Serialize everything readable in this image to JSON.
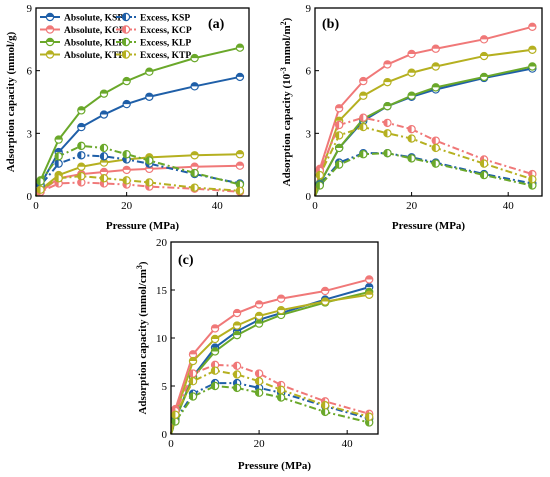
{
  "chart_data": [
    {
      "type": "line",
      "panel_label": "(a)",
      "xlabel": "Pressure (MPa)",
      "ylabel": "Adsorption capacity (mmol/g)",
      "xlim": [
        0,
        47
      ],
      "ylim": [
        0,
        9
      ],
      "xticks": [
        0,
        20,
        40
      ],
      "yticks": [
        0,
        3,
        6,
        9
      ],
      "legend": "top-left",
      "x": [
        0,
        1,
        5,
        10,
        15,
        20,
        25,
        35,
        45
      ],
      "series": [
        {
          "name": "Absolute, KSP",
          "style": "absolute",
          "color": "#1f5fa8",
          "values": [
            0,
            0.55,
            2.1,
            3.3,
            3.9,
            4.4,
            4.75,
            5.25,
            5.7
          ]
        },
        {
          "name": "Absolute, KCP",
          "style": "absolute",
          "color": "#f07878",
          "values": [
            0,
            0.2,
            0.85,
            1.05,
            1.15,
            1.25,
            1.3,
            1.4,
            1.45
          ]
        },
        {
          "name": "Absolute, KLP",
          "style": "absolute",
          "color": "#6aa82a",
          "values": [
            0,
            0.75,
            2.7,
            4.1,
            4.9,
            5.5,
            5.95,
            6.6,
            7.1
          ]
        },
        {
          "name": "Absolute, KTP",
          "style": "absolute",
          "color": "#b5b020",
          "values": [
            0,
            0.3,
            1.0,
            1.4,
            1.6,
            1.75,
            1.85,
            1.95,
            2.0
          ]
        },
        {
          "name": "Excess, KSP",
          "style": "excess",
          "color": "#1f5fa8",
          "values": [
            0,
            0.5,
            1.55,
            1.95,
            1.9,
            1.75,
            1.55,
            1.05,
            0.6
          ]
        },
        {
          "name": "Excess, KCP",
          "style": "excess",
          "color": "#f07878",
          "values": [
            0,
            0.2,
            0.6,
            0.65,
            0.6,
            0.55,
            0.45,
            0.35,
            0.2
          ]
        },
        {
          "name": "Excess, KLP",
          "style": "excess",
          "color": "#6aa82a",
          "values": [
            0,
            0.7,
            1.9,
            2.4,
            2.3,
            2.0,
            1.7,
            1.1,
            0.55
          ]
        },
        {
          "name": "Excess, KTP",
          "style": "excess",
          "color": "#b5b020",
          "values": [
            0,
            0.3,
            0.85,
            0.95,
            0.85,
            0.75,
            0.65,
            0.4,
            0.25
          ]
        }
      ]
    },
    {
      "type": "line",
      "panel_label": "(b)",
      "xlabel": "Pressure (MPa)",
      "ylabel_main": "Adsorption capacity (10",
      "ylabel_sup1": "-3",
      "ylabel_mid": " mmol/m",
      "ylabel_sup2": "2",
      "ylabel_end": ")",
      "xlim": [
        0,
        47
      ],
      "ylim": [
        0,
        9
      ],
      "xticks": [
        0,
        20,
        40
      ],
      "yticks": [
        0,
        3,
        6,
        9
      ],
      "x": [
        0,
        1,
        5,
        10,
        15,
        20,
        25,
        35,
        45
      ],
      "series": [
        {
          "name": "Absolute, KSP",
          "style": "absolute",
          "color": "#1f5fa8",
          "values": [
            0,
            0.6,
            2.3,
            3.6,
            4.3,
            4.75,
            5.1,
            5.65,
            6.1
          ]
        },
        {
          "name": "Absolute, KCP",
          "style": "absolute",
          "color": "#f07878",
          "values": [
            0,
            1.3,
            4.2,
            5.5,
            6.3,
            6.8,
            7.05,
            7.5,
            8.1
          ]
        },
        {
          "name": "Absolute, KLP",
          "style": "absolute",
          "color": "#6aa82a",
          "values": [
            0,
            0.6,
            2.3,
            3.7,
            4.3,
            4.8,
            5.2,
            5.7,
            6.2
          ]
        },
        {
          "name": "Absolute, KTP",
          "style": "absolute",
          "color": "#b5b020",
          "values": [
            0,
            1.0,
            3.6,
            4.8,
            5.45,
            5.9,
            6.2,
            6.7,
            7.0
          ]
        },
        {
          "name": "Excess, KSP",
          "style": "excess",
          "color": "#1f5fa8",
          "values": [
            0,
            0.55,
            1.6,
            2.05,
            2.05,
            1.85,
            1.6,
            1.05,
            0.6
          ]
        },
        {
          "name": "Excess, KCP",
          "style": "excess",
          "color": "#f07878",
          "values": [
            0,
            1.2,
            3.4,
            3.75,
            3.5,
            3.2,
            2.65,
            1.75,
            1.05
          ]
        },
        {
          "name": "Excess, KLP",
          "style": "excess",
          "color": "#6aa82a",
          "values": [
            0,
            0.5,
            1.5,
            2.0,
            2.05,
            1.8,
            1.55,
            1.0,
            0.5
          ]
        },
        {
          "name": "Excess, KTP",
          "style": "excess",
          "color": "#b5b020",
          "values": [
            0,
            1.0,
            2.9,
            3.3,
            3.0,
            2.75,
            2.3,
            1.55,
            0.8
          ]
        }
      ]
    },
    {
      "type": "line",
      "panel_label": "(c)",
      "xlabel": "Pressure (MPa)",
      "ylabel_main": "Adsorption capacity (mmol/cm",
      "ylabel_sup1": "3",
      "ylabel_end": ")",
      "xlim": [
        0,
        47
      ],
      "ylim": [
        0,
        20
      ],
      "xticks": [
        0,
        20,
        40
      ],
      "yticks": [
        0,
        5,
        10,
        15,
        20
      ],
      "x": [
        0,
        1,
        5,
        10,
        15,
        20,
        25,
        35,
        45
      ],
      "series": [
        {
          "name": "Absolute, KSP",
          "style": "absolute",
          "color": "#1f5fa8",
          "values": [
            0,
            1.6,
            6.0,
            9.0,
            10.7,
            11.9,
            12.6,
            14.0,
            15.3
          ]
        },
        {
          "name": "Absolute, KCP",
          "style": "absolute",
          "color": "#f07878",
          "values": [
            0,
            2.6,
            8.3,
            11.0,
            12.6,
            13.5,
            14.1,
            14.9,
            16.1
          ]
        },
        {
          "name": "Absolute, KLP",
          "style": "absolute",
          "color": "#6aa82a",
          "values": [
            0,
            1.5,
            5.9,
            8.6,
            10.3,
            11.5,
            12.4,
            13.7,
            14.8
          ]
        },
        {
          "name": "Absolute, KTP",
          "style": "absolute",
          "color": "#b5b020",
          "values": [
            0,
            2.0,
            7.6,
            9.9,
            11.3,
            12.3,
            12.9,
            13.8,
            14.5
          ]
        },
        {
          "name": "Excess, KSP",
          "style": "excess",
          "color": "#1f5fa8",
          "values": [
            0,
            1.4,
            4.2,
            5.3,
            5.3,
            4.8,
            4.3,
            2.9,
            1.6
          ]
        },
        {
          "name": "Excess, KCP",
          "style": "excess",
          "color": "#f07878",
          "values": [
            0,
            2.4,
            6.3,
            7.2,
            7.1,
            6.3,
            5.1,
            3.4,
            2.1
          ]
        },
        {
          "name": "Excess, KLP",
          "style": "excess",
          "color": "#6aa82a",
          "values": [
            0,
            1.3,
            3.9,
            5.0,
            4.8,
            4.3,
            3.8,
            2.3,
            1.2
          ]
        },
        {
          "name": "Excess, KTP",
          "style": "excess",
          "color": "#b5b020",
          "values": [
            0,
            2.0,
            5.5,
            6.6,
            6.2,
            5.5,
            4.6,
            3.0,
            1.8
          ]
        }
      ]
    }
  ]
}
